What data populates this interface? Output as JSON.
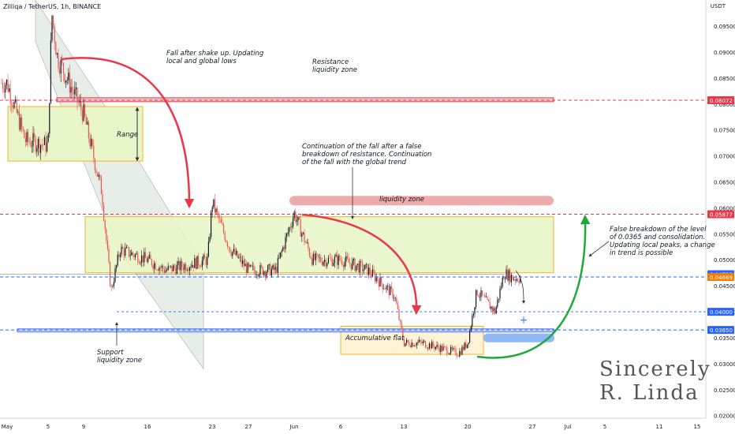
{
  "header": {
    "title": "Zilliqa / TetherUS, 1h, BINANCE",
    "unit": "USDT"
  },
  "colors": {
    "up": "#26a69a",
    "down": "#ef5350",
    "candle": "#131722",
    "red_line": "#e8394a",
    "blue_line": "#2962ff",
    "green_arrow": "#22a83a",
    "zone_fill": "#e8f5c8",
    "zone_border": "#f0b429",
    "liquidity": "#e57373",
    "blue_zone": "#90b8f8"
  },
  "annotations": {
    "fall": "Fall after shake up. Updating\nlocal and global lows",
    "resistance": "Resistance\nliquidity zone",
    "range": "Range",
    "continuation": "Continuation of the fall after a false\nbreakdown of resistance. Continuation\nof the fall with the global trend",
    "liquidity": "liquidity zone",
    "false_breakdown": "False breakdown of the level\nof 0.0365 and consolidation.\nUpdating local peaks, a change\nin trend is possible",
    "support": "Support\nliquidity zone",
    "accumulative": "Accumulative flat",
    "signature": "Sincerely\nR. Linda"
  },
  "chart_data": {
    "type": "candlestick",
    "title": "Zilliqa / TetherUS, 1h, BINANCE",
    "ylabel": "USDT",
    "ylim": [
      0.0195,
      0.0985
    ],
    "y_ticks": [
      "0.09500",
      "0.09000",
      "0.08500",
      "0.08000",
      "0.07500",
      "0.07000",
      "0.06500",
      "0.06000",
      "0.05500",
      "0.05000",
      "0.04500",
      "0.04000",
      "0.03500",
      "0.03000",
      "0.02500",
      "0.02000"
    ],
    "x_ticks": [
      "May",
      "5",
      "9",
      "16",
      "23",
      "27",
      "Jun",
      "6",
      "13",
      "20",
      "27",
      "Jul",
      "5",
      "11",
      "15"
    ],
    "price_labels": [
      {
        "value": 0.08072,
        "text": "0.08072",
        "color": "#e8394a"
      },
      {
        "value": 0.05877,
        "text": "0.05877",
        "color": "#e8394a"
      },
      {
        "value": 0.04722,
        "text": "0.04722",
        "color": "#2962ff"
      },
      {
        "value": 0.04669,
        "text": "0.04669",
        "color": "#f57c00"
      },
      {
        "value": 0.04,
        "text": "0.04000",
        "color": "#2962ff"
      },
      {
        "value": 0.0365,
        "text": "0.03650",
        "color": "#2962ff"
      }
    ],
    "price_path": [
      [
        "May",
        0.084
      ],
      [
        "May+2",
        0.073
      ],
      [
        "5",
        0.072
      ],
      [
        "5+0.4",
        0.0975
      ],
      [
        "5+1",
        0.089
      ],
      [
        "9",
        0.078
      ],
      [
        "9+2",
        0.063
      ],
      [
        "9+3",
        0.044
      ],
      [
        "9+4",
        0.052
      ],
      [
        "16",
        0.05
      ],
      [
        "16+2",
        0.048
      ],
      [
        "23-0.5",
        0.05
      ],
      [
        "23",
        0.061
      ],
      [
        "23+2",
        0.052
      ],
      [
        "27",
        0.048
      ],
      [
        "27+3",
        0.048
      ],
      [
        "Jun",
        0.059
      ],
      [
        "Jun+2",
        0.05
      ],
      [
        "6",
        0.05
      ],
      [
        "6+3",
        0.048
      ],
      [
        "13-1",
        0.043
      ],
      [
        "13",
        0.034
      ],
      [
        "13+2",
        0.034
      ],
      [
        "20-1",
        0.032
      ],
      [
        "20",
        0.034
      ],
      [
        "20+1",
        0.044
      ],
      [
        "20+3",
        0.04
      ],
      [
        "20+4",
        0.0475
      ],
      [
        "20+5",
        0.0465
      ]
    ]
  }
}
